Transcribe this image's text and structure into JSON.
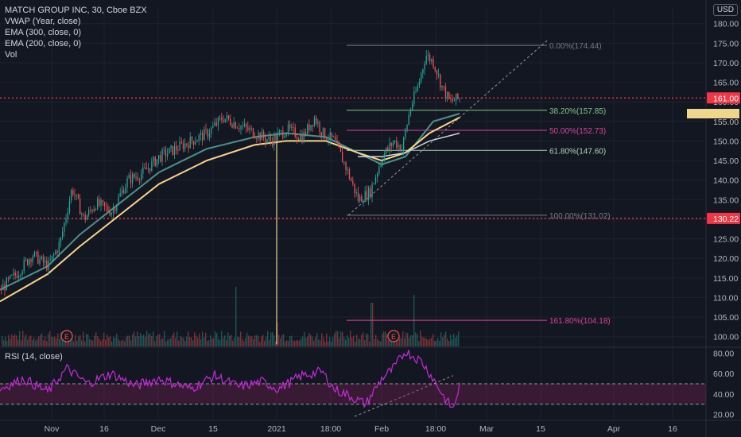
{
  "header": {
    "symbol_line": "MATCH GROUP INC, 30, Cboe BZX",
    "indicators": [
      "VWAP (Year, close)",
      "EMA (300, close, 0)",
      "EMA (200, close, 0)",
      "Vol"
    ],
    "currency": "USD"
  },
  "rsi_panel": {
    "label": "RSI (14, close)"
  },
  "chart_data": {
    "type": "candlestick",
    "price_axis": {
      "ticks": [
        100,
        105,
        110,
        115,
        120,
        125,
        130,
        135,
        140,
        145,
        150,
        155,
        160,
        165,
        170,
        175,
        180
      ],
      "tick_labels": [
        "100.00",
        "105.00",
        "110.00",
        "115.00",
        "120.00",
        "125.00",
        "130.00",
        "135.00",
        "140.00",
        "145.00",
        "150.00",
        "155.00",
        "160.00",
        "165.00",
        "170.00",
        "175.00",
        "180.00"
      ],
      "range": [
        97.5,
        184
      ]
    },
    "rsi_axis": {
      "ticks": [
        20,
        40,
        60,
        80
      ],
      "tick_labels": [
        "20.00",
        "40.00",
        "60.00",
        "80.00"
      ],
      "range": [
        15,
        85
      ],
      "band": [
        30,
        50
      ]
    },
    "time_axis": {
      "labels": [
        "Nov",
        "16",
        "Dec",
        "15",
        "2021",
        "18:00",
        "Feb",
        "18:00",
        "Mar",
        "15",
        "Apr",
        "16"
      ]
    },
    "price_path": [
      [
        0,
        112
      ],
      [
        20,
        116
      ],
      [
        40,
        121
      ],
      [
        60,
        118
      ],
      [
        75,
        124
      ],
      [
        90,
        138
      ],
      [
        105,
        130
      ],
      [
        120,
        134
      ],
      [
        140,
        132
      ],
      [
        160,
        140
      ],
      [
        180,
        142
      ],
      [
        200,
        146
      ],
      [
        220,
        148
      ],
      [
        240,
        150
      ],
      [
        260,
        152
      ],
      [
        280,
        156
      ],
      [
        300,
        154
      ],
      [
        320,
        152
      ],
      [
        340,
        150
      ],
      [
        360,
        153
      ],
      [
        380,
        151
      ],
      [
        395,
        156
      ],
      [
        405,
        152
      ],
      [
        420,
        150
      ],
      [
        435,
        143
      ],
      [
        450,
        135
      ],
      [
        465,
        137
      ],
      [
        480,
        146
      ],
      [
        495,
        150
      ],
      [
        505,
        148
      ],
      [
        515,
        158
      ],
      [
        525,
        164
      ],
      [
        535,
        172
      ],
      [
        545,
        170
      ],
      [
        555,
        164
      ],
      [
        565,
        160
      ],
      [
        578,
        161
      ]
    ],
    "vwap": [
      [
        0,
        112
      ],
      [
        60,
        118
      ],
      [
        100,
        126
      ],
      [
        150,
        134
      ],
      [
        200,
        142
      ],
      [
        260,
        148
      ],
      [
        320,
        151
      ],
      [
        360,
        152
      ],
      [
        410,
        151
      ],
      [
        450,
        147
      ],
      [
        480,
        144
      ],
      [
        510,
        146
      ],
      [
        545,
        155
      ],
      [
        578,
        157
      ]
    ],
    "ema300": [
      [
        0,
        109
      ],
      [
        60,
        116
      ],
      [
        100,
        123
      ],
      [
        150,
        131
      ],
      [
        200,
        139
      ],
      [
        260,
        145
      ],
      [
        320,
        149
      ],
      [
        360,
        150
      ],
      [
        410,
        150
      ],
      [
        450,
        147
      ],
      [
        480,
        145
      ],
      [
        510,
        147
      ],
      [
        540,
        152
      ],
      [
        578,
        156
      ]
    ],
    "ema200": [
      [
        450,
        146
      ],
      [
        480,
        146
      ],
      [
        510,
        147
      ],
      [
        540,
        150
      ],
      [
        578,
        152
      ]
    ],
    "fib_levels": [
      {
        "label": "0.00%(174.44)",
        "price": 174.44,
        "color": "#787b86"
      },
      {
        "label": "38.20%(157.85)",
        "price": 157.85,
        "color": "#81c784"
      },
      {
        "label": "50.00%(152.73)",
        "price": 152.73,
        "color": "#e040a0"
      },
      {
        "label": "61.80%(147.60)",
        "price": 147.6,
        "color": "#b0d5b8"
      },
      {
        "label": "100.00%(131.02)",
        "price": 131.02,
        "color": "#787b86"
      },
      {
        "label": "161.80%(104.18)",
        "price": 104.18,
        "color": "#e040a0"
      }
    ],
    "price_badges": [
      {
        "value": "161.00",
        "price": 161.0,
        "color": "#f23645"
      },
      {
        "value": "130.22",
        "price": 130.22,
        "color": "#f23645"
      }
    ],
    "earnings_markers": [
      {
        "label": "E",
        "x": 84
      },
      {
        "label": "E",
        "x": 495
      }
    ],
    "rsi_path": [
      [
        0,
        45
      ],
      [
        30,
        55
      ],
      [
        60,
        42
      ],
      [
        84,
        65
      ],
      [
        110,
        50
      ],
      [
        140,
        60
      ],
      [
        170,
        48
      ],
      [
        200,
        55
      ],
      [
        240,
        45
      ],
      [
        270,
        58
      ],
      [
        300,
        47
      ],
      [
        330,
        52
      ],
      [
        350,
        45
      ],
      [
        380,
        58
      ],
      [
        405,
        62
      ],
      [
        420,
        45
      ],
      [
        440,
        38
      ],
      [
        460,
        30
      ],
      [
        480,
        55
      ],
      [
        495,
        65
      ],
      [
        510,
        82
      ],
      [
        530,
        72
      ],
      [
        545,
        55
      ],
      [
        560,
        35
      ],
      [
        570,
        25
      ],
      [
        578,
        48
      ]
    ],
    "volume_spikes": [
      [
        296,
        75
      ],
      [
        348,
        30
      ],
      [
        440,
        20
      ],
      [
        467,
        55
      ],
      [
        520,
        65
      ]
    ]
  }
}
